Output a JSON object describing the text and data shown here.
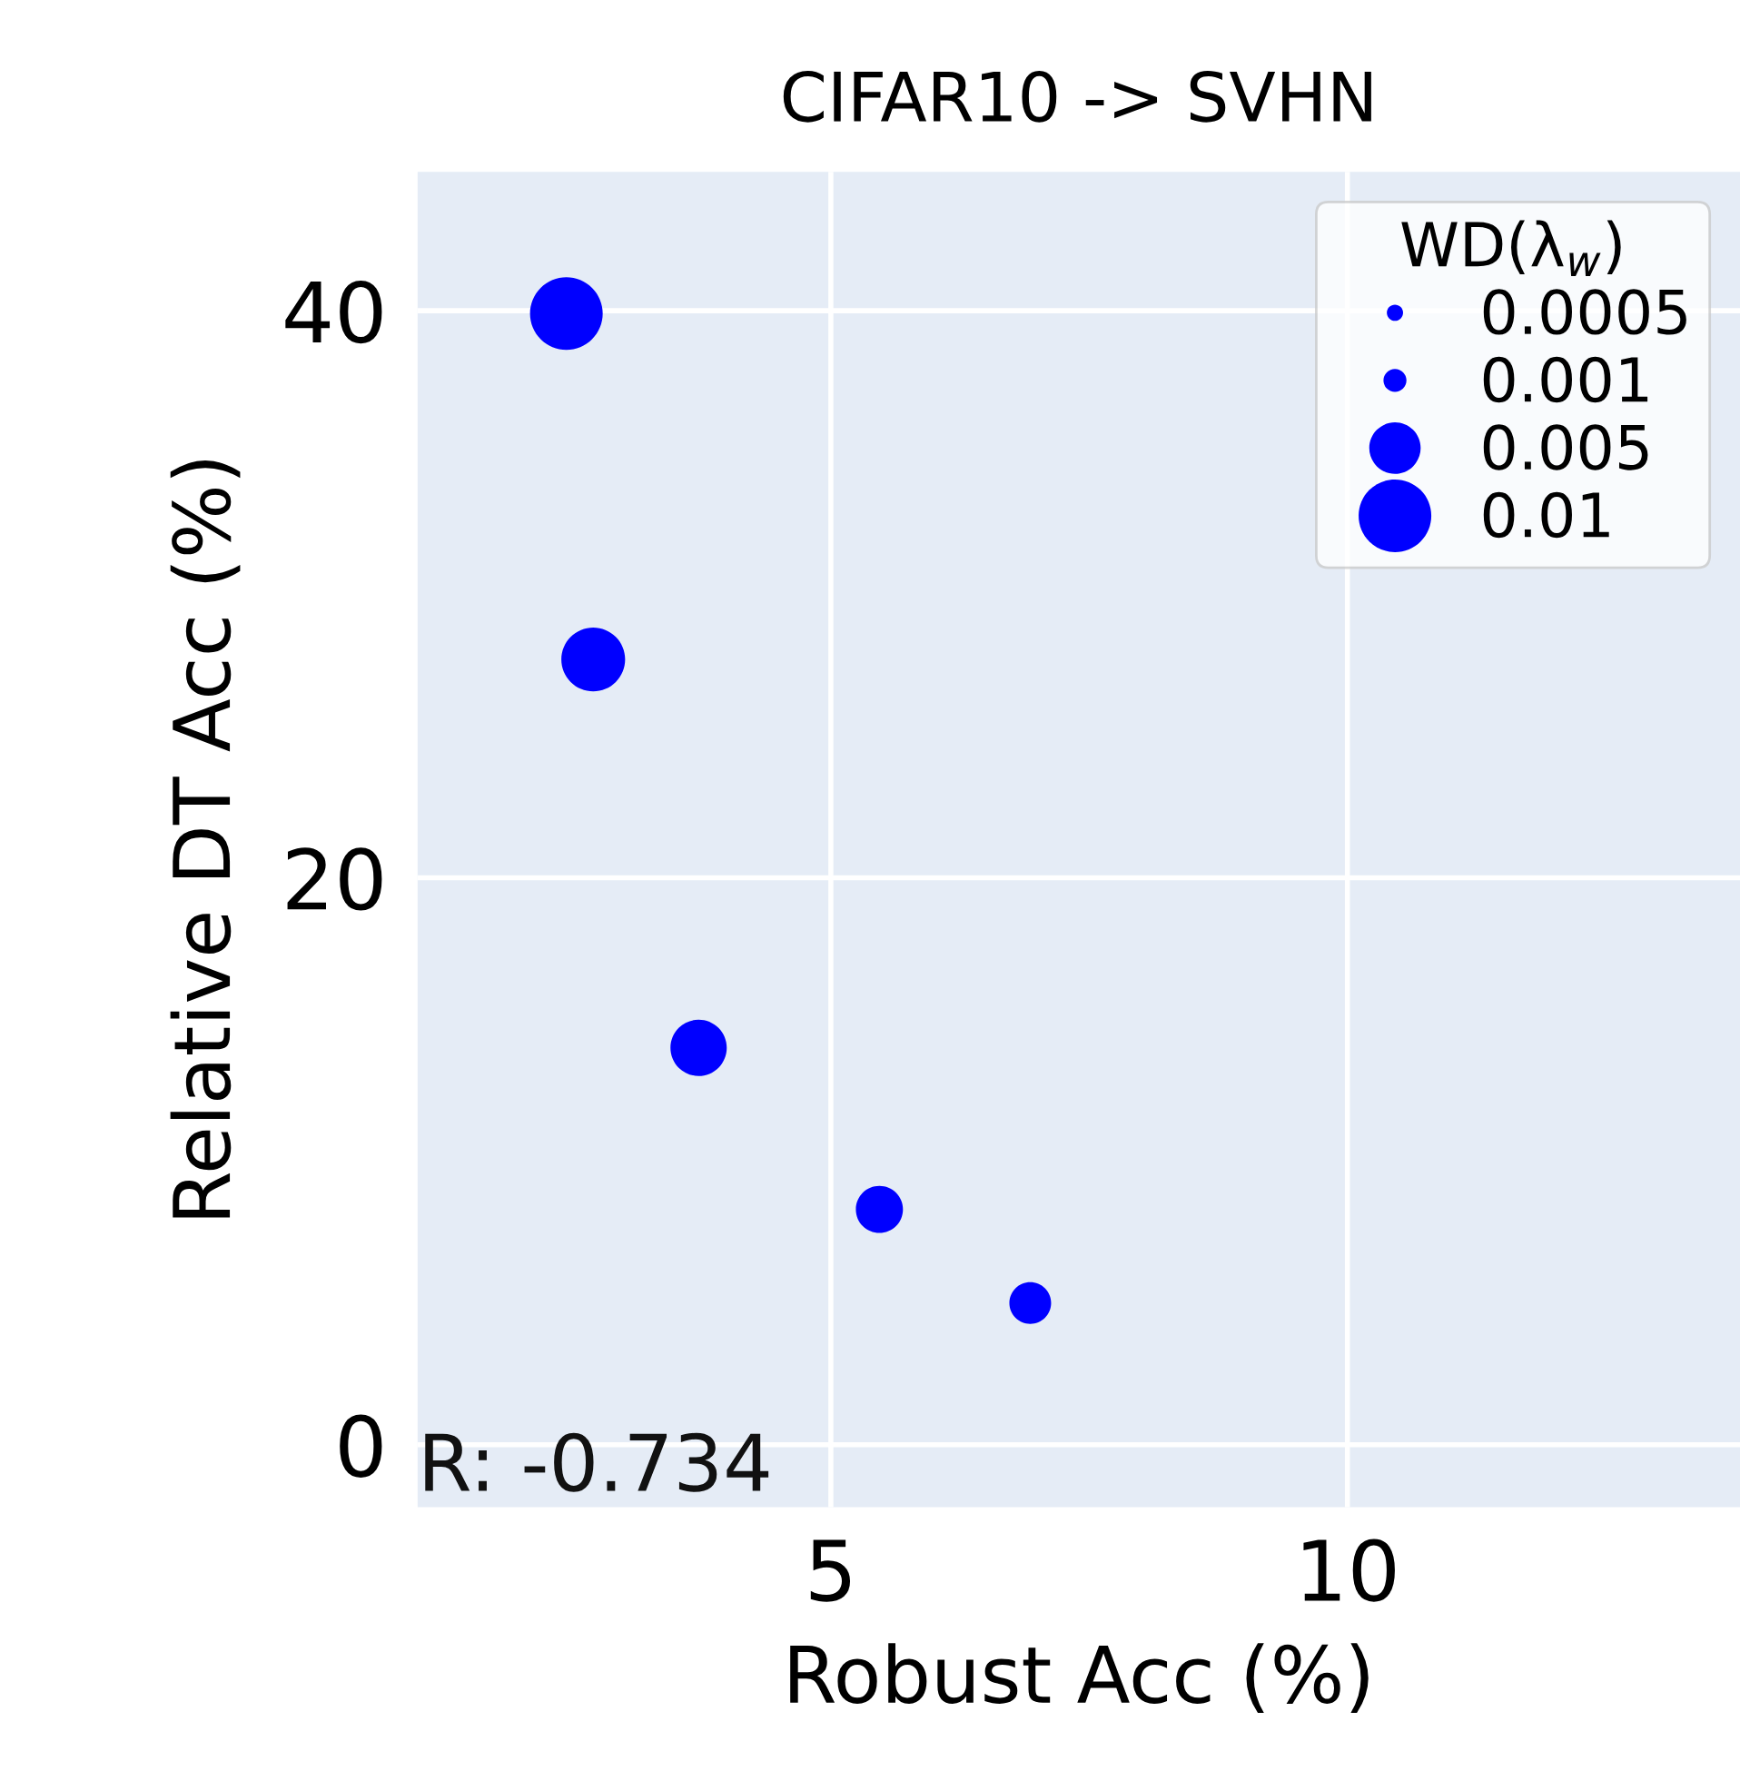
{
  "chart_data": {
    "type": "bubble",
    "title": "CIFAR10 -> SVHN",
    "xlabel": "Robust Acc (%)",
    "ylabel": "Relative DT Acc (%)",
    "legend_title": "WD(λ$_{w}$)",
    "x": [
      2.44,
      2.7,
      3.72,
      5.47,
      6.93
    ],
    "series": [
      {
        "color": "#0000ff",
        "values": [
          39.9,
          27.7,
          14.0,
          8.3,
          5.0
        ],
        "sizes": [
          0.01,
          0.0077,
          0.006,
          0.0042,
          0.0033
        ]
      }
    ],
    "size_legend": [
      0.0005,
      0.001,
      0.005,
      0.01
    ],
    "annotations": [
      "R: -0.734"
    ],
    "xlim": [
      1,
      13.8
    ],
    "ylim": [
      -2.2,
      44.9
    ],
    "xticks": [
      5,
      10
    ],
    "yticks": [
      0,
      20,
      40
    ],
    "grid": true,
    "marker": "circle"
  }
}
